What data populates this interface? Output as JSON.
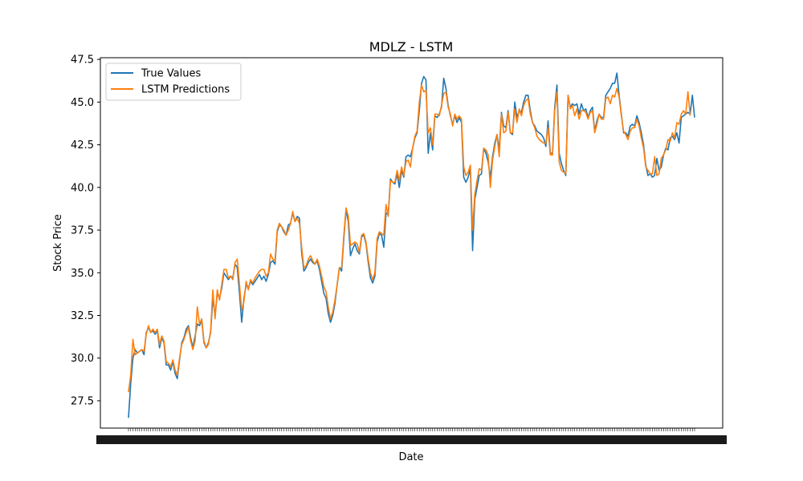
{
  "chart_data": {
    "type": "line",
    "title": "MDLZ - LSTM",
    "xlabel": "Date",
    "ylabel": "Stock Price",
    "ylim": [
      25.9,
      47.6
    ],
    "yticks": [
      "27.5",
      "30.0",
      "32.5",
      "35.0",
      "37.5",
      "40.0",
      "42.5",
      "45.0",
      "47.5"
    ],
    "ytick_values": [
      27.5,
      30.0,
      32.5,
      35.0,
      37.5,
      40.0,
      42.5,
      45.0,
      47.5
    ],
    "x_ticks_note": "dense overlapping date tick labels (unreadable)",
    "legend": {
      "position": "upper-left",
      "entries": [
        "True Values",
        "LSTM Predictions"
      ]
    },
    "grid": false,
    "series": [
      {
        "name": "True Values",
        "color": "#1f77b4",
        "values": [
          26.5,
          28.5,
          30.0,
          30.5,
          30.3,
          30.4,
          30.5,
          30.2,
          31.5,
          31.8,
          31.5,
          31.6,
          31.4,
          31.6,
          30.6,
          31.2,
          30.9,
          29.6,
          29.6,
          29.3,
          29.8,
          29.1,
          28.8,
          29.9,
          30.9,
          31.2,
          31.7,
          31.9,
          31.2,
          30.6,
          31.3,
          32.0,
          31.9,
          32.2,
          30.9,
          30.6,
          30.9,
          31.5,
          33.5,
          32.5,
          33.8,
          33.5,
          34.1,
          35.0,
          34.8,
          34.6,
          34.8,
          34.7,
          35.5,
          35.3,
          33.8,
          32.1,
          33.5,
          34.3,
          34.1,
          34.5,
          34.3,
          34.5,
          34.7,
          34.9,
          34.6,
          34.8,
          34.5,
          34.9,
          35.6,
          35.7,
          35.5,
          37.4,
          37.8,
          37.7,
          37.4,
          37.2,
          37.8,
          37.9,
          38.5,
          38.0,
          38.3,
          38.2,
          36.2,
          35.1,
          35.3,
          35.6,
          35.8,
          35.6,
          35.5,
          35.7,
          35.2,
          34.5,
          33.8,
          33.5,
          32.6,
          32.1,
          32.5,
          33.2,
          34.3,
          35.3,
          35.1,
          37.0,
          38.7,
          38.0,
          36.0,
          36.4,
          36.7,
          36.3,
          36.1,
          37.1,
          37.2,
          36.7,
          35.6,
          34.7,
          34.4,
          34.8,
          36.8,
          37.3,
          37.2,
          36.5,
          38.5,
          38.4,
          40.5,
          40.3,
          40.2,
          40.8,
          40.0,
          41.0,
          40.6,
          41.8,
          41.9,
          41.8,
          42.3,
          42.9,
          43.2,
          44.5,
          46.1,
          46.5,
          46.3,
          42.0,
          43.2,
          42.2,
          44.2,
          44.1,
          44.3,
          44.7,
          46.4,
          45.8,
          44.8,
          44.2,
          43.7,
          44.2,
          43.8,
          44.1,
          43.8,
          40.6,
          40.3,
          40.6,
          41.1,
          36.3,
          39.3,
          40.0,
          40.7,
          40.8,
          42.3,
          42.0,
          41.5,
          40.6,
          41.8,
          42.6,
          43.1,
          42.2,
          44.4,
          43.6,
          43.5,
          44.5,
          43.2,
          43.1,
          45.0,
          44.1,
          44.5,
          44.4,
          45.0,
          45.4,
          45.4,
          44.5,
          43.8,
          43.6,
          43.3,
          43.2,
          43.1,
          42.9,
          42.4,
          43.9,
          42.0,
          42.0,
          44.7,
          46.0,
          42.0,
          41.4,
          41.0,
          40.7,
          45.4,
          44.7,
          44.9,
          44.8,
          44.9,
          44.3,
          44.9,
          44.5,
          44.6,
          44.1,
          44.5,
          44.7,
          43.3,
          43.9,
          44.3,
          44.1,
          44.1,
          45.4,
          45.6,
          45.8,
          46.1,
          46.1,
          46.7,
          45.4,
          44.3,
          43.2,
          43.2,
          43.0,
          43.6,
          43.7,
          43.6,
          44.2,
          43.8,
          43.2,
          42.5,
          41.3,
          40.7,
          40.8,
          40.6,
          40.7,
          41.7,
          41.0,
          41.2,
          41.9,
          42.3,
          42.2,
          42.9,
          43.0,
          42.8,
          43.2,
          42.6,
          44.1,
          44.2,
          44.3,
          44.4,
          44.3,
          45.4,
          44.1
        ]
      },
      {
        "name": "LSTM Predictions",
        "color": "#ff7f0e",
        "values": [
          28.0,
          29.0,
          31.1,
          30.2,
          30.3,
          30.4,
          30.5,
          30.4,
          31.4,
          31.9,
          31.5,
          31.7,
          31.5,
          31.7,
          30.8,
          31.3,
          31.0,
          29.8,
          29.7,
          29.5,
          29.9,
          29.3,
          29.0,
          30.0,
          30.8,
          31.1,
          31.5,
          31.8,
          31.0,
          30.5,
          31.0,
          33.0,
          32.0,
          32.3,
          31.0,
          30.6,
          30.8,
          31.6,
          34.0,
          32.3,
          34.0,
          33.4,
          34.3,
          35.2,
          35.2,
          34.7,
          34.8,
          34.6,
          35.6,
          35.8,
          34.3,
          32.8,
          33.3,
          34.5,
          34.0,
          34.6,
          34.4,
          34.7,
          34.9,
          35.1,
          35.2,
          35.2,
          34.8,
          35.0,
          36.1,
          35.8,
          35.7,
          37.5,
          37.9,
          37.7,
          37.5,
          37.2,
          37.5,
          37.9,
          38.6,
          38.0,
          38.2,
          37.9,
          36.5,
          35.3,
          35.4,
          35.8,
          36.0,
          35.7,
          35.5,
          35.8,
          35.4,
          34.8,
          34.2,
          33.9,
          33.0,
          32.3,
          32.7,
          33.4,
          34.3,
          35.3,
          35.3,
          37.2,
          38.8,
          38.3,
          36.6,
          36.7,
          36.8,
          36.7,
          36.2,
          37.2,
          37.3,
          36.8,
          35.8,
          35.0,
          34.6,
          35.0,
          37.0,
          37.4,
          37.3,
          37.2,
          39.0,
          38.3,
          40.4,
          40.3,
          40.3,
          41.0,
          40.4,
          41.2,
          40.7,
          41.5,
          41.6,
          41.2,
          42.3,
          43.0,
          43.3,
          45.0,
          46.0,
          45.6,
          45.7,
          43.2,
          43.5,
          42.5,
          44.3,
          44.3,
          44.2,
          44.8,
          45.5,
          45.6,
          44.7,
          44.3,
          43.6,
          44.3,
          44.0,
          44.2,
          44.0,
          41.2,
          40.7,
          40.9,
          41.3,
          37.5,
          39.6,
          40.4,
          41.1,
          41.0,
          42.3,
          42.2,
          41.9,
          40.0,
          41.6,
          42.4,
          43.1,
          41.8,
          44.3,
          43.2,
          43.3,
          44.4,
          43.2,
          43.2,
          44.6,
          43.8,
          44.6,
          44.2,
          44.8,
          45.1,
          45.2,
          44.3,
          43.8,
          43.5,
          43.0,
          42.8,
          42.7,
          42.6,
          42.6,
          43.5,
          41.9,
          41.9,
          44.5,
          45.6,
          41.5,
          41.0,
          40.9,
          40.8,
          45.4,
          44.6,
          44.8,
          44.2,
          44.6,
          44.0,
          44.5,
          44.5,
          44.4,
          44.0,
          44.4,
          44.5,
          43.2,
          43.7,
          44.3,
          44.0,
          44.0,
          45.2,
          45.3,
          44.9,
          45.4,
          45.3,
          45.8,
          45.3,
          44.2,
          43.3,
          43.1,
          42.8,
          43.3,
          43.5,
          43.5,
          44.0,
          43.6,
          42.9,
          42.3,
          41.2,
          41.0,
          40.8,
          40.8,
          41.8,
          40.7,
          40.8,
          41.7,
          41.9,
          42.2,
          42.8,
          42.7,
          43.2,
          42.9,
          43.8,
          43.7,
          44.3,
          44.5,
          44.3,
          45.6,
          44.2
        ]
      }
    ]
  }
}
